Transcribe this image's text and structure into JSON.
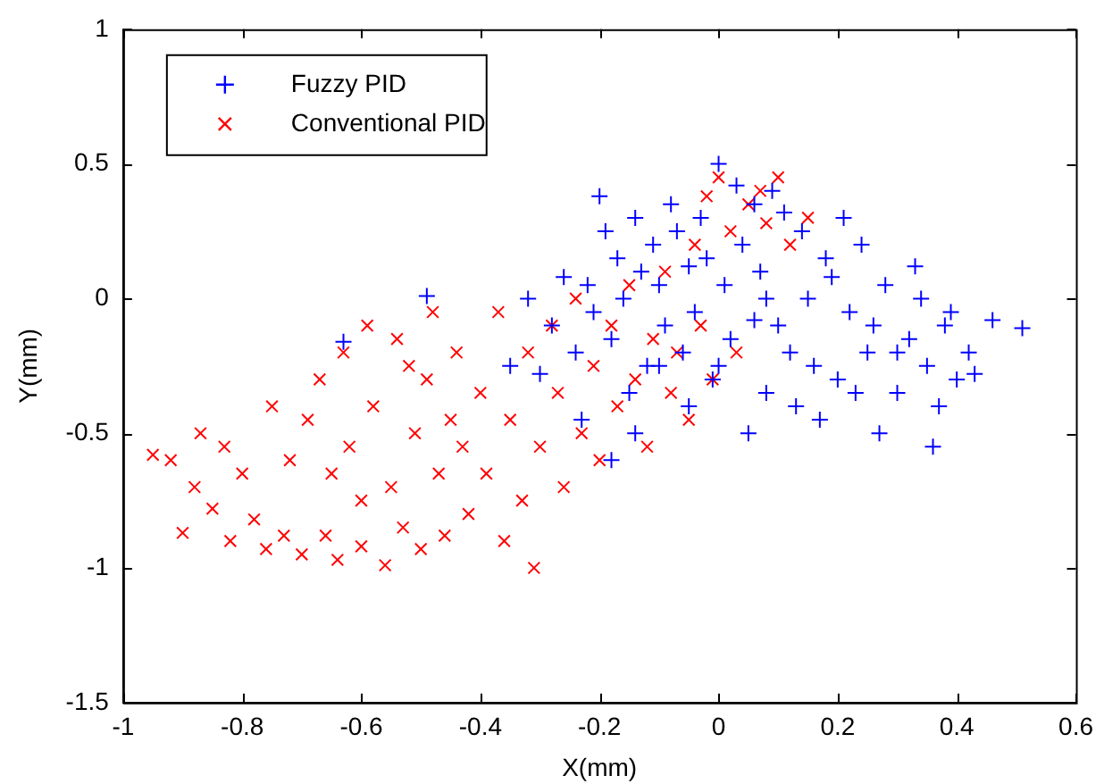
{
  "chart_data": {
    "type": "scatter",
    "xlabel": "X(mm)",
    "ylabel": "Y(mm)",
    "xlim": [
      -1,
      0.6
    ],
    "xticks": [
      -1,
      -0.8,
      -0.6,
      -0.4,
      -0.2,
      0,
      0.2,
      0.4,
      0.6
    ],
    "ylim": [
      -1.5,
      1
    ],
    "yticks": [
      -1.5,
      -1,
      -0.5,
      0,
      0.5,
      1
    ],
    "grid": false,
    "legend": "top left",
    "series": [
      {
        "name": "Fuzzy PID",
        "color": "#0000ff",
        "marker": "cross",
        "x": [
          0.51,
          0.46,
          0.42,
          0.4,
          0.38,
          0.37,
          0.35,
          0.33,
          0.32,
          0.3,
          0.28,
          0.27,
          0.25,
          0.24,
          0.22,
          0.21,
          0.2,
          0.18,
          0.17,
          0.15,
          0.14,
          0.12,
          0.11,
          0.1,
          0.09,
          0.08,
          0.07,
          0.06,
          0.05,
          0.04,
          0.03,
          0.02,
          0.01,
          0.0,
          -0.01,
          -0.02,
          -0.03,
          -0.04,
          -0.05,
          -0.06,
          -0.07,
          -0.08,
          -0.09,
          -0.1,
          -0.11,
          -0.12,
          -0.13,
          -0.14,
          -0.15,
          -0.16,
          -0.17,
          -0.18,
          -0.19,
          -0.2,
          -0.21,
          -0.22,
          -0.23,
          -0.24,
          -0.26,
          -0.28,
          -0.3,
          -0.32,
          -0.35,
          -0.18,
          -0.49,
          -0.63,
          0.36,
          0.43,
          0.3,
          0.13,
          0.26,
          0.19,
          0.08,
          -0.05,
          0.0,
          0.16,
          0.39,
          0.34,
          0.23,
          0.06,
          -0.1,
          -0.14
        ],
        "values": [
          -0.11,
          -0.08,
          -0.2,
          -0.3,
          -0.1,
          -0.4,
          -0.25,
          0.12,
          -0.15,
          -0.35,
          0.05,
          -0.5,
          -0.2,
          0.2,
          -0.05,
          0.3,
          -0.3,
          0.15,
          -0.45,
          0.0,
          0.25,
          -0.2,
          0.32,
          -0.1,
          0.4,
          -0.35,
          0.1,
          0.35,
          -0.5,
          0.2,
          0.42,
          -0.15,
          0.05,
          0.5,
          -0.3,
          0.15,
          0.3,
          -0.05,
          0.12,
          -0.2,
          0.25,
          0.35,
          -0.1,
          0.05,
          0.2,
          -0.25,
          0.1,
          0.3,
          -0.35,
          0.0,
          0.15,
          -0.15,
          0.25,
          0.38,
          -0.05,
          0.05,
          -0.45,
          -0.2,
          0.08,
          -0.1,
          -0.28,
          0.0,
          -0.25,
          -0.6,
          0.01,
          -0.16,
          -0.55,
          -0.28,
          -0.2,
          -0.4,
          -0.1,
          0.08,
          0.0,
          -0.4,
          -0.25,
          -0.25,
          -0.05,
          0.0,
          -0.35,
          -0.08,
          -0.25,
          -0.5
        ]
      },
      {
        "name": "Conventional PID",
        "color": "#ff0000",
        "marker": "x",
        "x": [
          -0.95,
          -0.92,
          -0.9,
          -0.88,
          -0.87,
          -0.85,
          -0.83,
          -0.82,
          -0.8,
          -0.78,
          -0.76,
          -0.75,
          -0.73,
          -0.72,
          -0.7,
          -0.69,
          -0.67,
          -0.66,
          -0.64,
          -0.63,
          -0.62,
          -0.6,
          -0.59,
          -0.58,
          -0.56,
          -0.55,
          -0.54,
          -0.53,
          -0.51,
          -0.5,
          -0.49,
          -0.47,
          -0.46,
          -0.44,
          -0.43,
          -0.42,
          -0.4,
          -0.39,
          -0.37,
          -0.36,
          -0.35,
          -0.33,
          -0.32,
          -0.31,
          -0.3,
          -0.28,
          -0.27,
          -0.26,
          -0.24,
          -0.23,
          -0.21,
          -0.2,
          -0.18,
          -0.17,
          -0.15,
          -0.14,
          -0.12,
          -0.11,
          -0.09,
          -0.08,
          -0.07,
          -0.05,
          -0.04,
          -0.03,
          -0.02,
          -0.01,
          0.0,
          0.02,
          0.03,
          0.05,
          0.07,
          0.08,
          0.1,
          0.12,
          0.15,
          -0.6,
          -0.48,
          -0.52,
          -0.65,
          -0.45
        ],
        "values": [
          -0.58,
          -0.6,
          -0.87,
          -0.7,
          -0.5,
          -0.78,
          -0.55,
          -0.9,
          -0.65,
          -0.82,
          -0.93,
          -0.4,
          -0.88,
          -0.6,
          -0.95,
          -0.45,
          -0.3,
          -0.88,
          -0.97,
          -0.2,
          -0.55,
          -0.92,
          -0.1,
          -0.4,
          -0.99,
          -0.7,
          -0.15,
          -0.85,
          -0.5,
          -0.93,
          -0.3,
          -0.65,
          -0.88,
          -0.2,
          -0.55,
          -0.8,
          -0.35,
          -0.65,
          -0.05,
          -0.9,
          -0.45,
          -0.75,
          -0.2,
          -1.0,
          -0.55,
          -0.1,
          -0.35,
          -0.7,
          0.0,
          -0.5,
          -0.25,
          -0.6,
          -0.1,
          -0.4,
          0.05,
          -0.3,
          -0.55,
          -0.15,
          0.1,
          -0.35,
          -0.2,
          -0.45,
          0.2,
          -0.1,
          0.38,
          -0.3,
          0.45,
          0.25,
          -0.2,
          0.35,
          0.4,
          0.28,
          0.45,
          0.2,
          0.3,
          -0.75,
          -0.05,
          -0.25,
          -0.65,
          -0.45
        ]
      }
    ]
  }
}
